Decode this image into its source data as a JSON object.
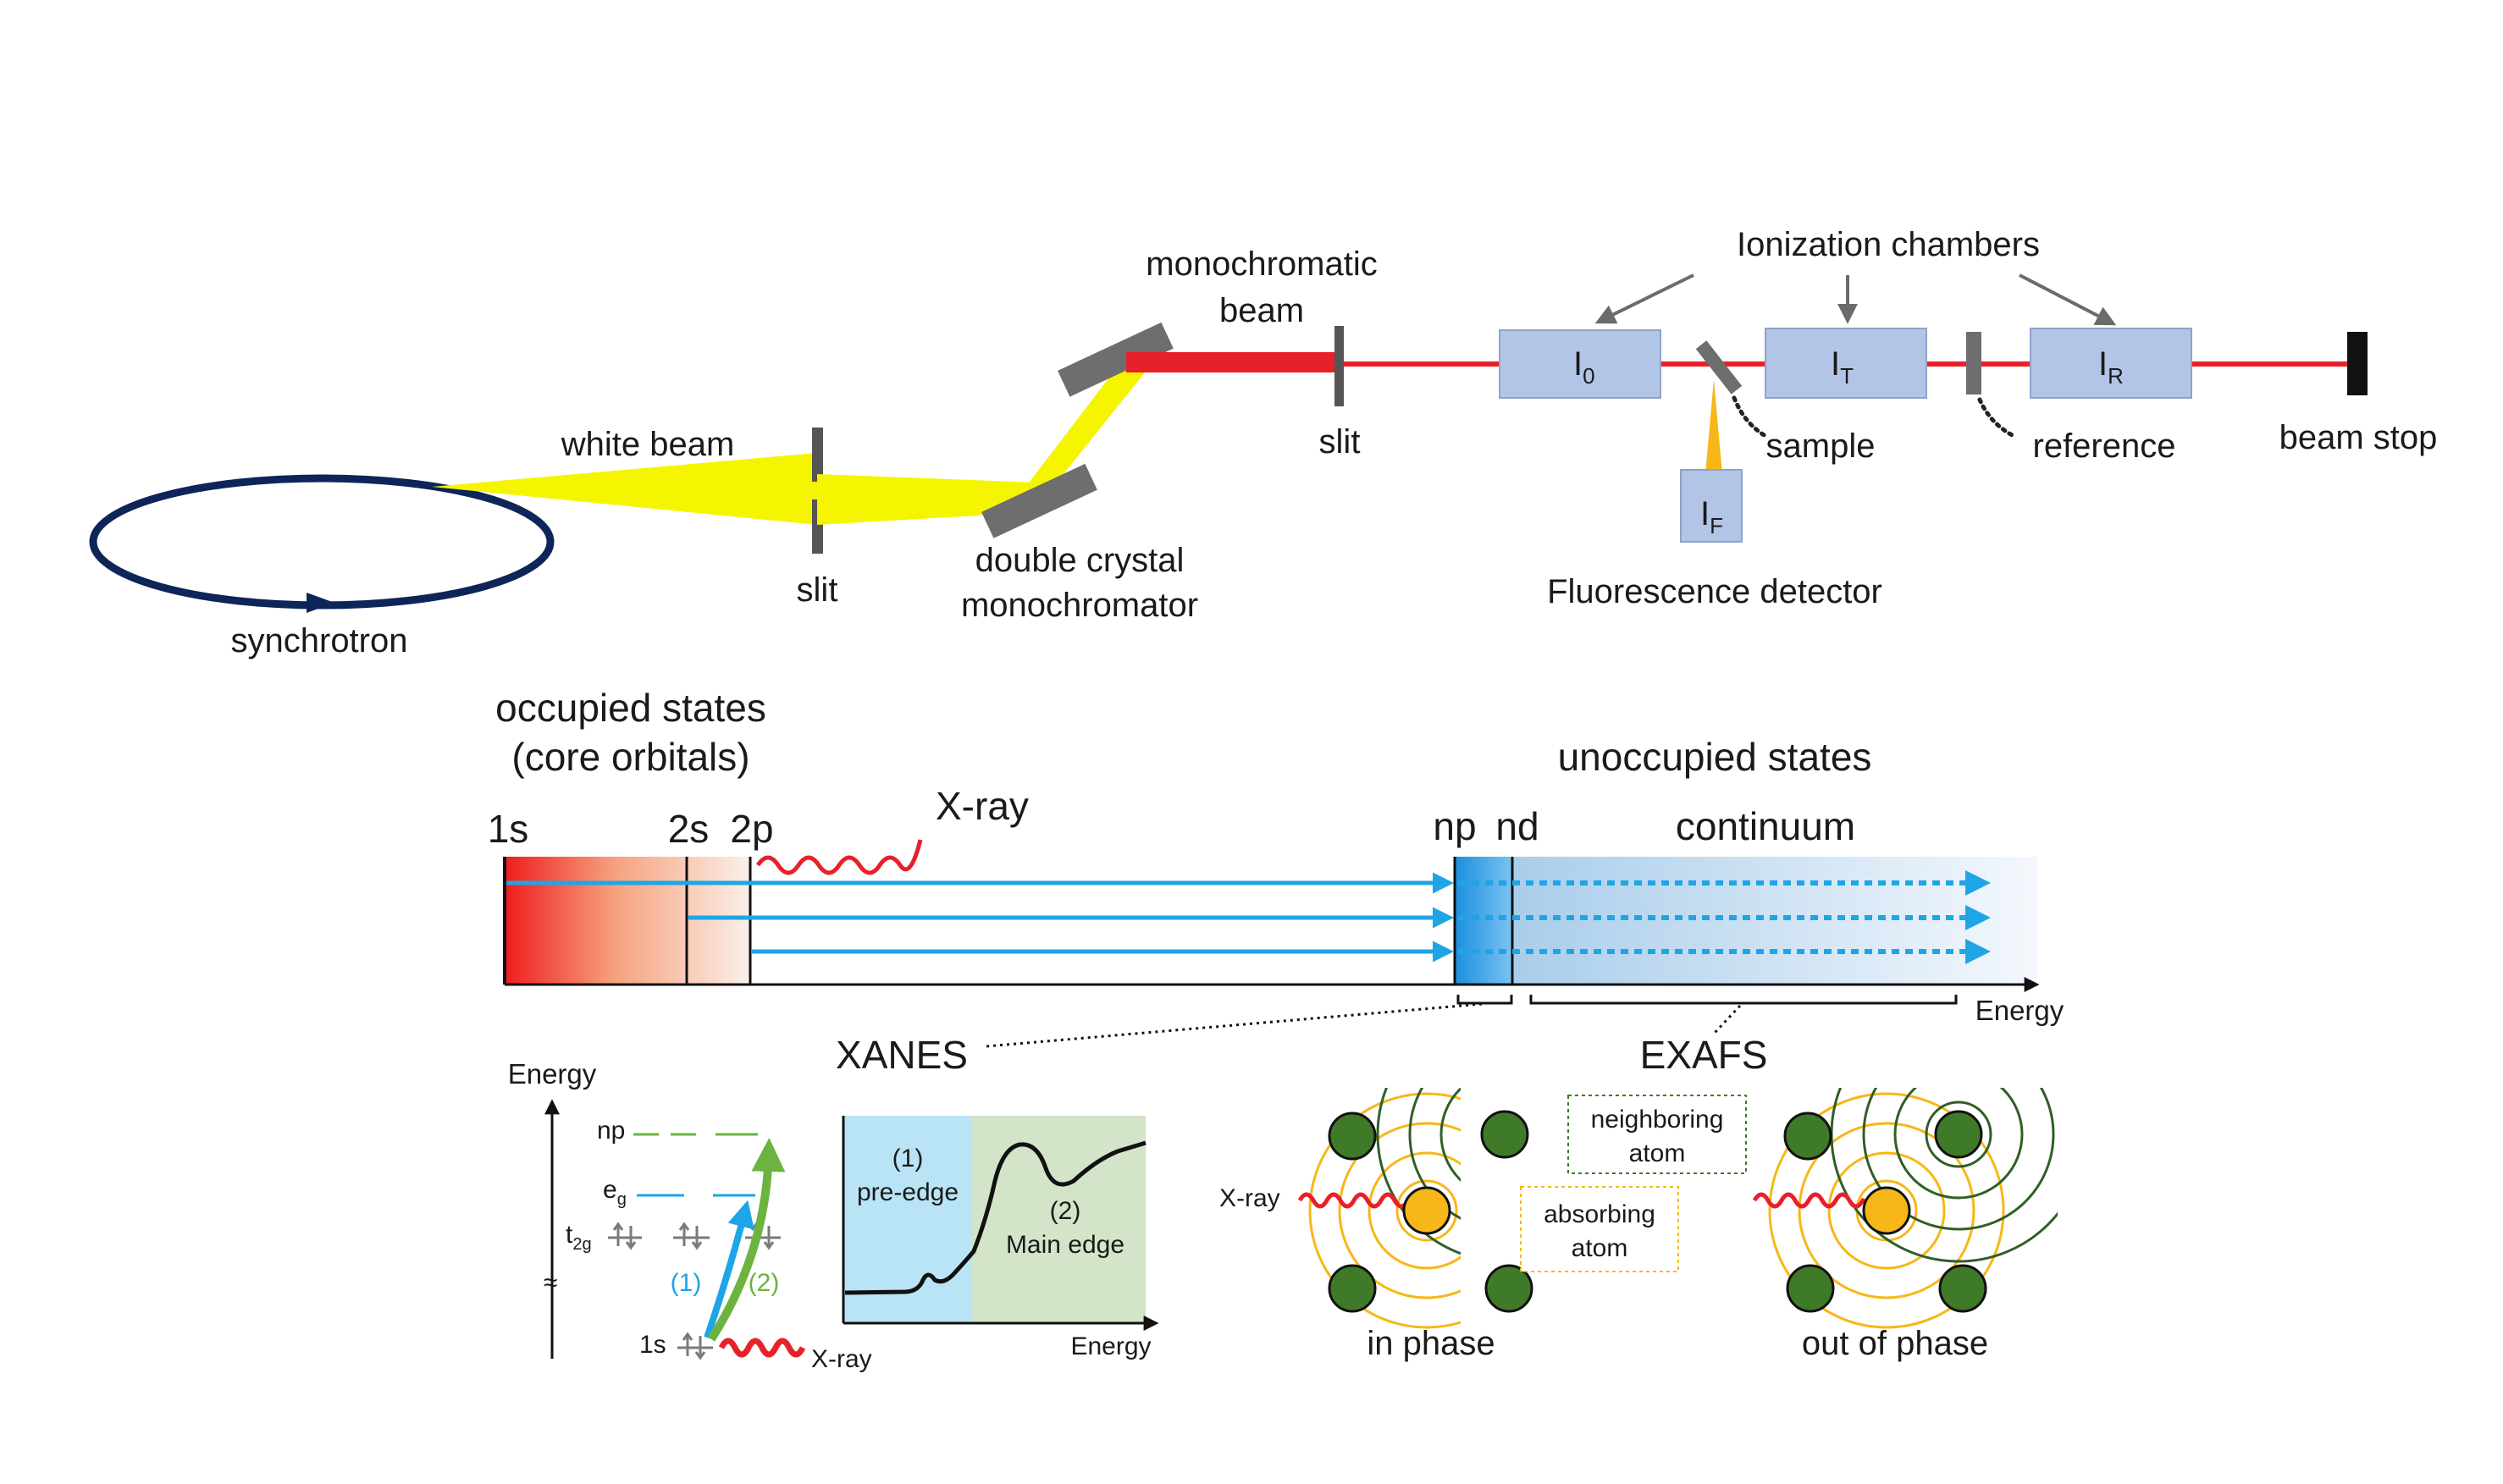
{
  "setup": {
    "synchrotron": "synchrotron",
    "white_beam": "white beam",
    "slit_1": "slit",
    "double_crystal_line1": "double crystal",
    "double_crystal_line2": "monochromator",
    "mono_beam_line1": "monochromatic",
    "mono_beam_line2": "beam",
    "slit_2": "slit",
    "ionization_chambers": "Ionization chambers",
    "i0_main": "I",
    "i0_sub": "0",
    "it_main": "I",
    "it_sub": "T",
    "ir_main": "I",
    "ir_sub": "R",
    "if_main": "I",
    "if_sub": "F",
    "sample": "sample",
    "reference": "reference",
    "beam_stop": "beam stop",
    "fluorescence_detector": "Fluorescence detector"
  },
  "states": {
    "occupied_line1": "occupied states",
    "occupied_line2": "(core orbitals)",
    "unoccupied": "unoccupied states",
    "s1": "1s",
    "s2": "2s",
    "p2": "2p",
    "xray": "X-ray",
    "np": "np",
    "nd": "nd",
    "continuum": "continuum",
    "energy_axis": "Energy",
    "xanes": "XANES",
    "exafs": "EXAFS"
  },
  "levels": {
    "energy": "Energy",
    "np": "np",
    "eg_main": "e",
    "eg_sub": "g",
    "t2g_main": "t",
    "t2g_sub": "2g",
    "s1": "1s",
    "xray": "X-ray",
    "transition_1": "(1)",
    "transition_2": "(2)"
  },
  "xanes_plot": {
    "pre_edge_num": "(1)",
    "pre_edge_label": "pre-edge",
    "main_edge_num": "(2)",
    "main_edge_label": "Main edge",
    "x_label": "Energy"
  },
  "exafs": {
    "xray": "X-ray",
    "neighboring_line1": "neighboring",
    "neighboring_line2": "atom",
    "absorbing_line1": "absorbing",
    "absorbing_line2": "atom",
    "in_phase": "in phase",
    "out_of_phase": "out of phase"
  },
  "colors": {
    "beam_red": "#e8202a",
    "white_beam_yellow": "#f5f500",
    "ring_navy": "#0d2558",
    "chamber_blue": "#b3c5e6",
    "arrow_blue": "#1ea5e6",
    "atom_green": "#3f7a28",
    "atom_orange": "#f7b718",
    "pre_edge_bg": "#b9e4f5",
    "main_edge_bg": "#d4e4c8"
  }
}
